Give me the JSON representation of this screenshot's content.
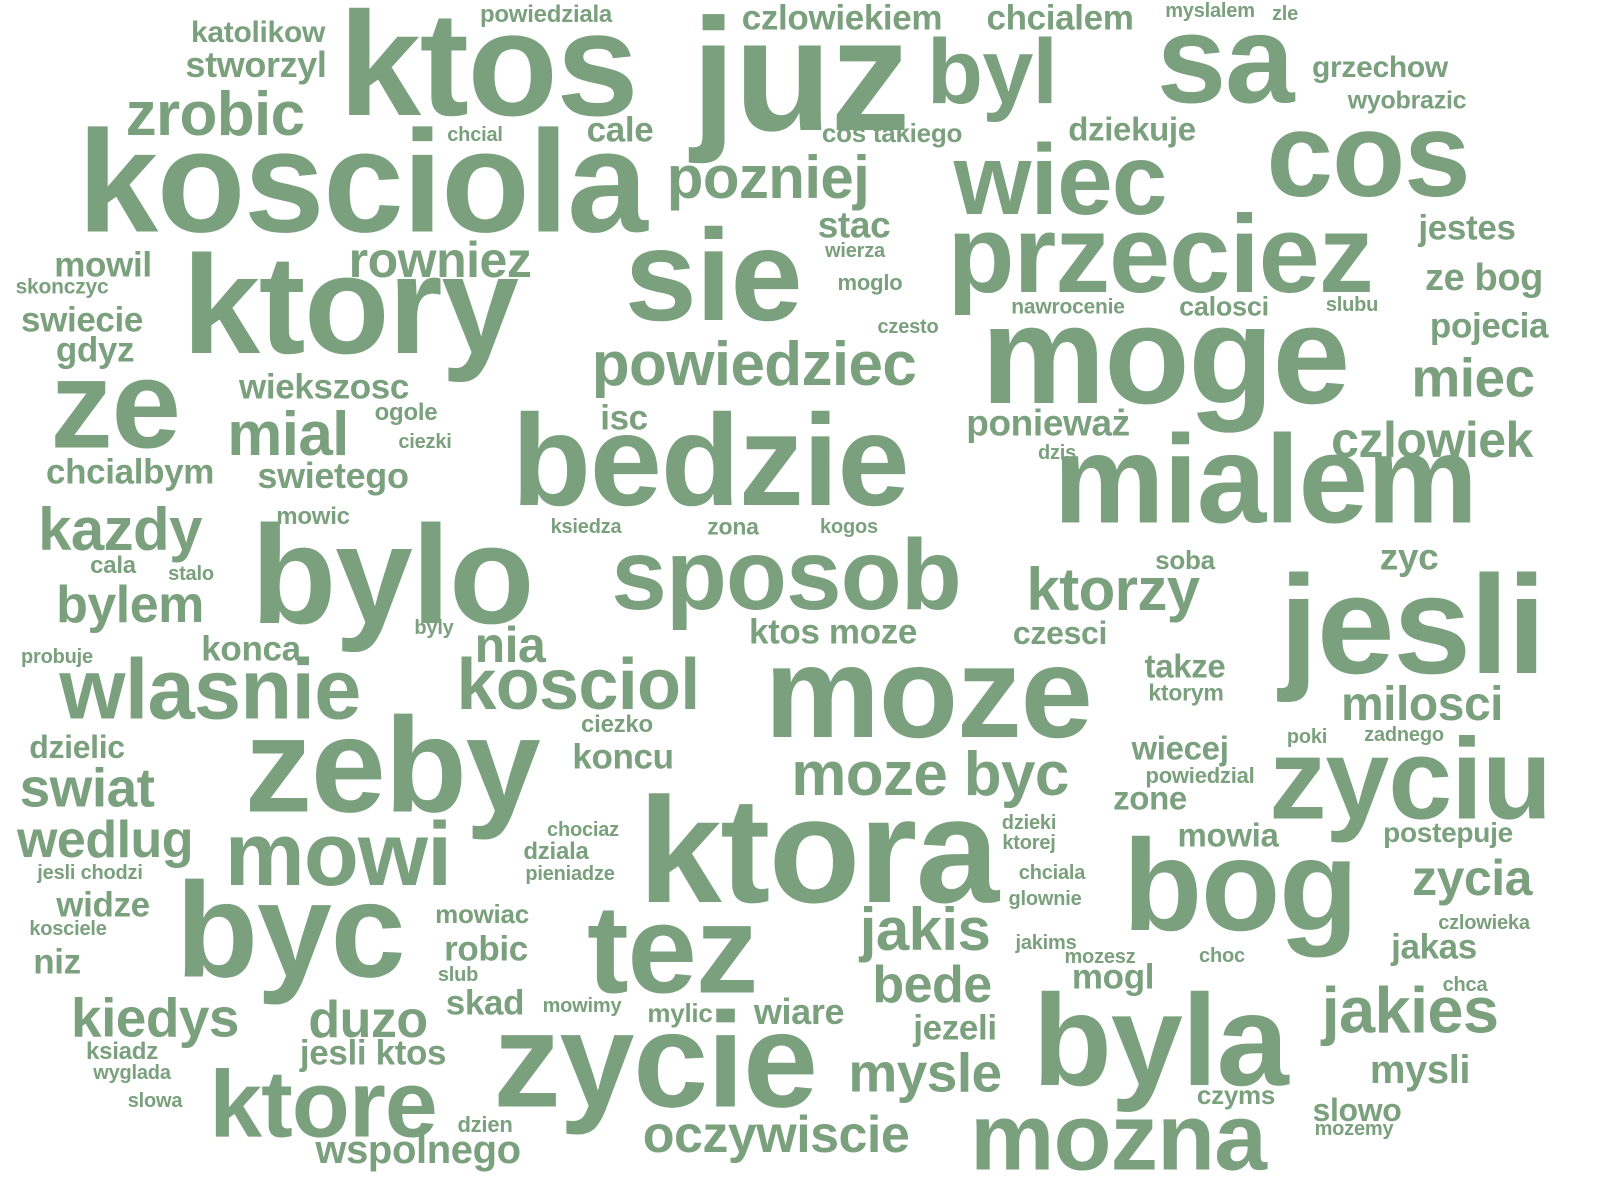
{
  "word_color": "#7aa07d",
  "background_color": "#ffffff",
  "words": [
    {
      "text": "ktos"
    },
    {
      "text": "juz"
    },
    {
      "text": "byl"
    },
    {
      "text": "sa"
    },
    {
      "text": "kosciola"
    },
    {
      "text": "cos"
    },
    {
      "text": "wiec"
    },
    {
      "text": "przeciez"
    },
    {
      "text": "sie"
    },
    {
      "text": "ktory"
    },
    {
      "text": "moge"
    },
    {
      "text": "ze"
    },
    {
      "text": "bedzie"
    },
    {
      "text": "mialem"
    },
    {
      "text": "bylo"
    },
    {
      "text": "sposob"
    },
    {
      "text": "jesli"
    },
    {
      "text": "moze"
    },
    {
      "text": "zeby"
    },
    {
      "text": "zyciu"
    },
    {
      "text": "ktora"
    },
    {
      "text": "bog"
    },
    {
      "text": "byc"
    },
    {
      "text": "tez"
    },
    {
      "text": "byla"
    },
    {
      "text": "zycie"
    },
    {
      "text": "mozna"
    },
    {
      "text": "ktore"
    },
    {
      "text": "zrobic"
    },
    {
      "text": "pozniej"
    },
    {
      "text": "powiedziec"
    },
    {
      "text": "rowniez"
    },
    {
      "text": "mial"
    },
    {
      "text": "kazdy"
    },
    {
      "text": "wlasnie"
    },
    {
      "text": "kosciol"
    },
    {
      "text": "ktorzy"
    },
    {
      "text": "moze byc"
    },
    {
      "text": "mowi"
    },
    {
      "text": "jakis"
    },
    {
      "text": "jakies"
    },
    {
      "text": "miec"
    },
    {
      "text": "czlowiek"
    },
    {
      "text": "milosci"
    },
    {
      "text": "zycia"
    },
    {
      "text": "mysle"
    },
    {
      "text": "oczywiscie"
    },
    {
      "text": "kiedys"
    },
    {
      "text": "duzo"
    },
    {
      "text": "swiat"
    },
    {
      "text": "wedlug"
    },
    {
      "text": "bylem"
    },
    {
      "text": "bede"
    },
    {
      "text": "nia"
    },
    {
      "text": "ponieważ"
    },
    {
      "text": "czlowiekiem"
    },
    {
      "text": "chcialem"
    },
    {
      "text": "stworzyl"
    },
    {
      "text": "katolikow"
    },
    {
      "text": "powiedziala"
    },
    {
      "text": "myslalem"
    },
    {
      "text": "zle"
    },
    {
      "text": "grzechow"
    },
    {
      "text": "wyobrazic"
    },
    {
      "text": "cale"
    },
    {
      "text": "chcial"
    },
    {
      "text": "cos takiego"
    },
    {
      "text": "dziekuje"
    },
    {
      "text": "stac"
    },
    {
      "text": "wierza"
    },
    {
      "text": "jestes"
    },
    {
      "text": "mowil"
    },
    {
      "text": "skonczyc"
    },
    {
      "text": "moglo"
    },
    {
      "text": "ze bog"
    },
    {
      "text": "swiecie"
    },
    {
      "text": "nawrocenie"
    },
    {
      "text": "calosci"
    },
    {
      "text": "slubu"
    },
    {
      "text": "gdyz"
    },
    {
      "text": "czesto"
    },
    {
      "text": "pojecia"
    },
    {
      "text": "wiekszosc"
    },
    {
      "text": "ogole"
    },
    {
      "text": "isc"
    },
    {
      "text": "ciezki"
    },
    {
      "text": "dzis"
    },
    {
      "text": "chcialbym"
    },
    {
      "text": "swietego"
    },
    {
      "text": "mowic"
    },
    {
      "text": "ksiedza"
    },
    {
      "text": "zona"
    },
    {
      "text": "kogos"
    },
    {
      "text": "cala"
    },
    {
      "text": "stalo"
    },
    {
      "text": "soba"
    },
    {
      "text": "zyc"
    },
    {
      "text": "byly"
    },
    {
      "text": "ktos moze"
    },
    {
      "text": "czesci"
    },
    {
      "text": "probuje"
    },
    {
      "text": "konca"
    },
    {
      "text": "takze"
    },
    {
      "text": "ktorym"
    },
    {
      "text": "ciezko"
    },
    {
      "text": "dzielic"
    },
    {
      "text": "koncu"
    },
    {
      "text": "wiecej"
    },
    {
      "text": "poki"
    },
    {
      "text": "zadnego"
    },
    {
      "text": "powiedzial"
    },
    {
      "text": "zone"
    },
    {
      "text": "chociaz"
    },
    {
      "text": "dzieki"
    },
    {
      "text": "ktorej"
    },
    {
      "text": "mowia"
    },
    {
      "text": "postepuje"
    },
    {
      "text": "dziala"
    },
    {
      "text": "pieniadze"
    },
    {
      "text": "jesli chodzi"
    },
    {
      "text": "chciala"
    },
    {
      "text": "glownie"
    },
    {
      "text": "widze"
    },
    {
      "text": "mowiac"
    },
    {
      "text": "czlowieka"
    },
    {
      "text": "kosciele"
    },
    {
      "text": "robic"
    },
    {
      "text": "jakims"
    },
    {
      "text": "mozesz"
    },
    {
      "text": "choc"
    },
    {
      "text": "jakas"
    },
    {
      "text": "niz"
    },
    {
      "text": "slub"
    },
    {
      "text": "mogl"
    },
    {
      "text": "chca"
    },
    {
      "text": "skad"
    },
    {
      "text": "mowimy"
    },
    {
      "text": "mylic"
    },
    {
      "text": "wiare"
    },
    {
      "text": "jezeli"
    },
    {
      "text": "jesli ktos"
    },
    {
      "text": "ksiadz"
    },
    {
      "text": "wyglada"
    },
    {
      "text": "mysli"
    },
    {
      "text": "slowa"
    },
    {
      "text": "czyms"
    },
    {
      "text": "dzien"
    },
    {
      "text": "slowo"
    },
    {
      "text": "mozemy"
    },
    {
      "text": "wspolnego"
    }
  ]
}
